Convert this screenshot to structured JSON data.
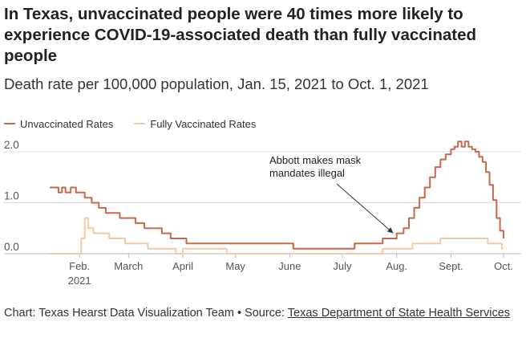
{
  "chart_data": {
    "type": "line",
    "title": "In Texas, unvaccinated people were 40 times more likely to experience COVID-19-associated death than fully vaccinated people",
    "subtitle": "Death rate per 100,000 population, Jan. 15, 2021 to Oct. 1, 2021",
    "xlim": [
      "2021-01-15",
      "2021-10-01"
    ],
    "ylim": [
      0,
      2.3
    ],
    "grid": true,
    "legend": "top-left",
    "x_ticks": [
      {
        "date": "2021-02-01",
        "label": "Feb.",
        "sublabel": "2021"
      },
      {
        "date": "2021-03-01",
        "label": "March"
      },
      {
        "date": "2021-04-01",
        "label": "April"
      },
      {
        "date": "2021-05-01",
        "label": "May"
      },
      {
        "date": "2021-06-01",
        "label": "June"
      },
      {
        "date": "2021-07-01",
        "label": "July"
      },
      {
        "date": "2021-08-01",
        "label": "Aug."
      },
      {
        "date": "2021-09-01",
        "label": "Sept."
      },
      {
        "date": "2021-10-01",
        "label": "Oct."
      }
    ],
    "y_ticks": [
      {
        "value": 0,
        "label": "0.0"
      },
      {
        "value": 1,
        "label": "1.0"
      },
      {
        "value": 2,
        "label": "2.0"
      }
    ],
    "series": [
      {
        "name": "Unvaccinated Rates",
        "color": "#c8694a",
        "points": [
          [
            "2021-01-15",
            1.3
          ],
          [
            "2021-01-19",
            1.3
          ],
          [
            "2021-01-20",
            1.2
          ],
          [
            "2021-01-22",
            1.3
          ],
          [
            "2021-01-24",
            1.2
          ],
          [
            "2021-01-27",
            1.3
          ],
          [
            "2021-01-30",
            1.2
          ],
          [
            "2021-02-02",
            1.2
          ],
          [
            "2021-02-04",
            1.1
          ],
          [
            "2021-02-08",
            1.0
          ],
          [
            "2021-02-12",
            0.9
          ],
          [
            "2021-02-16",
            0.8
          ],
          [
            "2021-02-20",
            0.8
          ],
          [
            "2021-02-24",
            0.7
          ],
          [
            "2021-03-01",
            0.7
          ],
          [
            "2021-03-05",
            0.6
          ],
          [
            "2021-03-10",
            0.5
          ],
          [
            "2021-03-15",
            0.5
          ],
          [
            "2021-03-20",
            0.4
          ],
          [
            "2021-03-25",
            0.3
          ],
          [
            "2021-03-30",
            0.3
          ],
          [
            "2021-04-03",
            0.2
          ],
          [
            "2021-04-20",
            0.2
          ],
          [
            "2021-05-15",
            0.2
          ],
          [
            "2021-06-01",
            0.2
          ],
          [
            "2021-06-03",
            0.1
          ],
          [
            "2021-07-05",
            0.1
          ],
          [
            "2021-07-08",
            0.2
          ],
          [
            "2021-07-20",
            0.2
          ],
          [
            "2021-07-24",
            0.3
          ],
          [
            "2021-07-28",
            0.3
          ],
          [
            "2021-08-01",
            0.4
          ],
          [
            "2021-08-05",
            0.5
          ],
          [
            "2021-08-08",
            0.7
          ],
          [
            "2021-08-11",
            0.9
          ],
          [
            "2021-08-14",
            1.1
          ],
          [
            "2021-08-17",
            1.3
          ],
          [
            "2021-08-20",
            1.5
          ],
          [
            "2021-08-23",
            1.7
          ],
          [
            "2021-08-26",
            1.85
          ],
          [
            "2021-08-29",
            1.95
          ],
          [
            "2021-09-01",
            2.05
          ],
          [
            "2021-09-03",
            2.1
          ],
          [
            "2021-09-05",
            2.2
          ],
          [
            "2021-09-07",
            2.1
          ],
          [
            "2021-09-09",
            2.2
          ],
          [
            "2021-09-11",
            2.1
          ],
          [
            "2021-09-13",
            2.05
          ],
          [
            "2021-09-15",
            2.0
          ],
          [
            "2021-09-17",
            1.9
          ],
          [
            "2021-09-19",
            1.8
          ],
          [
            "2021-09-21",
            1.6
          ],
          [
            "2021-09-23",
            1.35
          ],
          [
            "2021-09-25",
            1.05
          ],
          [
            "2021-09-27",
            0.7
          ],
          [
            "2021-09-29",
            0.45
          ],
          [
            "2021-10-01",
            0.3
          ]
        ]
      },
      {
        "name": "Fully Vaccinated Rates",
        "color": "#f3c9a6",
        "points": [
          [
            "2021-01-15",
            0.0
          ],
          [
            "2021-01-31",
            0.0
          ],
          [
            "2021-02-02",
            0.3
          ],
          [
            "2021-02-04",
            0.7
          ],
          [
            "2021-02-06",
            0.5
          ],
          [
            "2021-02-09",
            0.4
          ],
          [
            "2021-02-16",
            0.4
          ],
          [
            "2021-02-18",
            0.3
          ],
          [
            "2021-02-25",
            0.3
          ],
          [
            "2021-02-27",
            0.2
          ],
          [
            "2021-03-10",
            0.2
          ],
          [
            "2021-03-12",
            0.1
          ],
          [
            "2021-03-25",
            0.1
          ],
          [
            "2021-03-28",
            0.0
          ],
          [
            "2021-04-01",
            0.1
          ],
          [
            "2021-04-24",
            0.1
          ],
          [
            "2021-04-26",
            0.0
          ],
          [
            "2021-05-01",
            0.0
          ],
          [
            "2021-07-20",
            0.0
          ],
          [
            "2021-07-24",
            0.1
          ],
          [
            "2021-08-08",
            0.1
          ],
          [
            "2021-08-10",
            0.2
          ],
          [
            "2021-08-24",
            0.2
          ],
          [
            "2021-08-26",
            0.3
          ],
          [
            "2021-09-20",
            0.3
          ],
          [
            "2021-09-22",
            0.2
          ],
          [
            "2021-09-28",
            0.2
          ],
          [
            "2021-09-30",
            0.1
          ],
          [
            "2021-10-01",
            0.1
          ]
        ]
      }
    ],
    "annotation": {
      "text_lines": [
        "Abbott makes mask",
        "mandates illegal"
      ],
      "target": [
        "2021-07-30",
        0.34
      ]
    }
  },
  "footer": {
    "credit": "Chart: Texas Hearst Data Visualization Team • Source: ",
    "source_link": "Texas Department of State Health Services"
  }
}
